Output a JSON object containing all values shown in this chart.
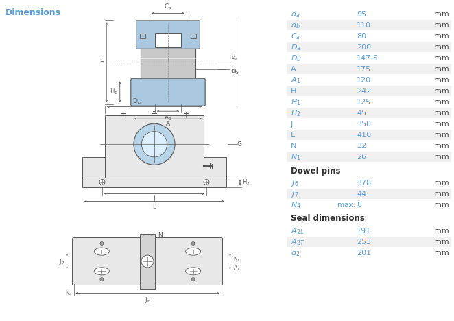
{
  "title": "Dimensions",
  "bg_color": "#ffffff",
  "table_bg": "#ffffff",
  "shaded_color": "#f0f0f0",
  "label_color": "#5b9bd5",
  "value_color": "#5b9bd5",
  "unit_color": "#505050",
  "section_header_color": "#303030",
  "title_color": "#5b9bd5",
  "lc": "#555555",
  "blue_fill": "#aac8e0",
  "gray_fill": "#d4d4d4",
  "light_gray": "#e8e8e8",
  "bearing_blue": "#b8d4e8",
  "table_rows": [
    {
      "label": "d",
      "sub": "a",
      "value": "95",
      "unit": "mm",
      "shaded": false
    },
    {
      "label": "d",
      "sub": "b",
      "value": "110",
      "unit": "mm",
      "shaded": true
    },
    {
      "label": "C",
      "sub": "a",
      "value": "80",
      "unit": "mm",
      "shaded": false
    },
    {
      "label": "D",
      "sub": "a",
      "value": "200",
      "unit": "mm",
      "shaded": true
    },
    {
      "label": "D",
      "sub": "b",
      "value": "147.5",
      "unit": "mm",
      "shaded": false
    },
    {
      "label": "A",
      "sub": "",
      "value": "175",
      "unit": "mm",
      "shaded": true
    },
    {
      "label": "A",
      "sub": "1",
      "value": "120",
      "unit": "mm",
      "shaded": false
    },
    {
      "label": "H",
      "sub": "",
      "value": "242",
      "unit": "mm",
      "shaded": true
    },
    {
      "label": "H",
      "sub": "1",
      "value": "125",
      "unit": "mm",
      "shaded": false
    },
    {
      "label": "H",
      "sub": "2",
      "value": "45",
      "unit": "mm",
      "shaded": true
    },
    {
      "label": "J",
      "sub": "",
      "value": "350",
      "unit": "mm",
      "shaded": false
    },
    {
      "label": "L",
      "sub": "",
      "value": "410",
      "unit": "mm",
      "shaded": true
    },
    {
      "label": "N",
      "sub": "",
      "value": "32",
      "unit": "mm",
      "shaded": false
    },
    {
      "label": "N",
      "sub": "1",
      "value": "26",
      "unit": "mm",
      "shaded": true
    }
  ],
  "dowel_rows": [
    {
      "label": "J",
      "sub": "6",
      "value": "378",
      "prefix": "",
      "unit": "mm",
      "shaded": false
    },
    {
      "label": "J",
      "sub": "7",
      "value": "44",
      "prefix": "",
      "unit": "mm",
      "shaded": true
    },
    {
      "label": "N",
      "sub": "4",
      "value": "8",
      "prefix": "max.",
      "unit": "mm",
      "shaded": false
    }
  ],
  "seal_rows": [
    {
      "label": "A",
      "sub": "2L",
      "value": "191",
      "unit": "mm",
      "shaded": false
    },
    {
      "label": "A",
      "sub": "2T",
      "value": "253",
      "unit": "mm",
      "shaded": true
    },
    {
      "label": "d",
      "sub": "2",
      "value": "201",
      "unit": "mm",
      "shaded": false
    }
  ]
}
